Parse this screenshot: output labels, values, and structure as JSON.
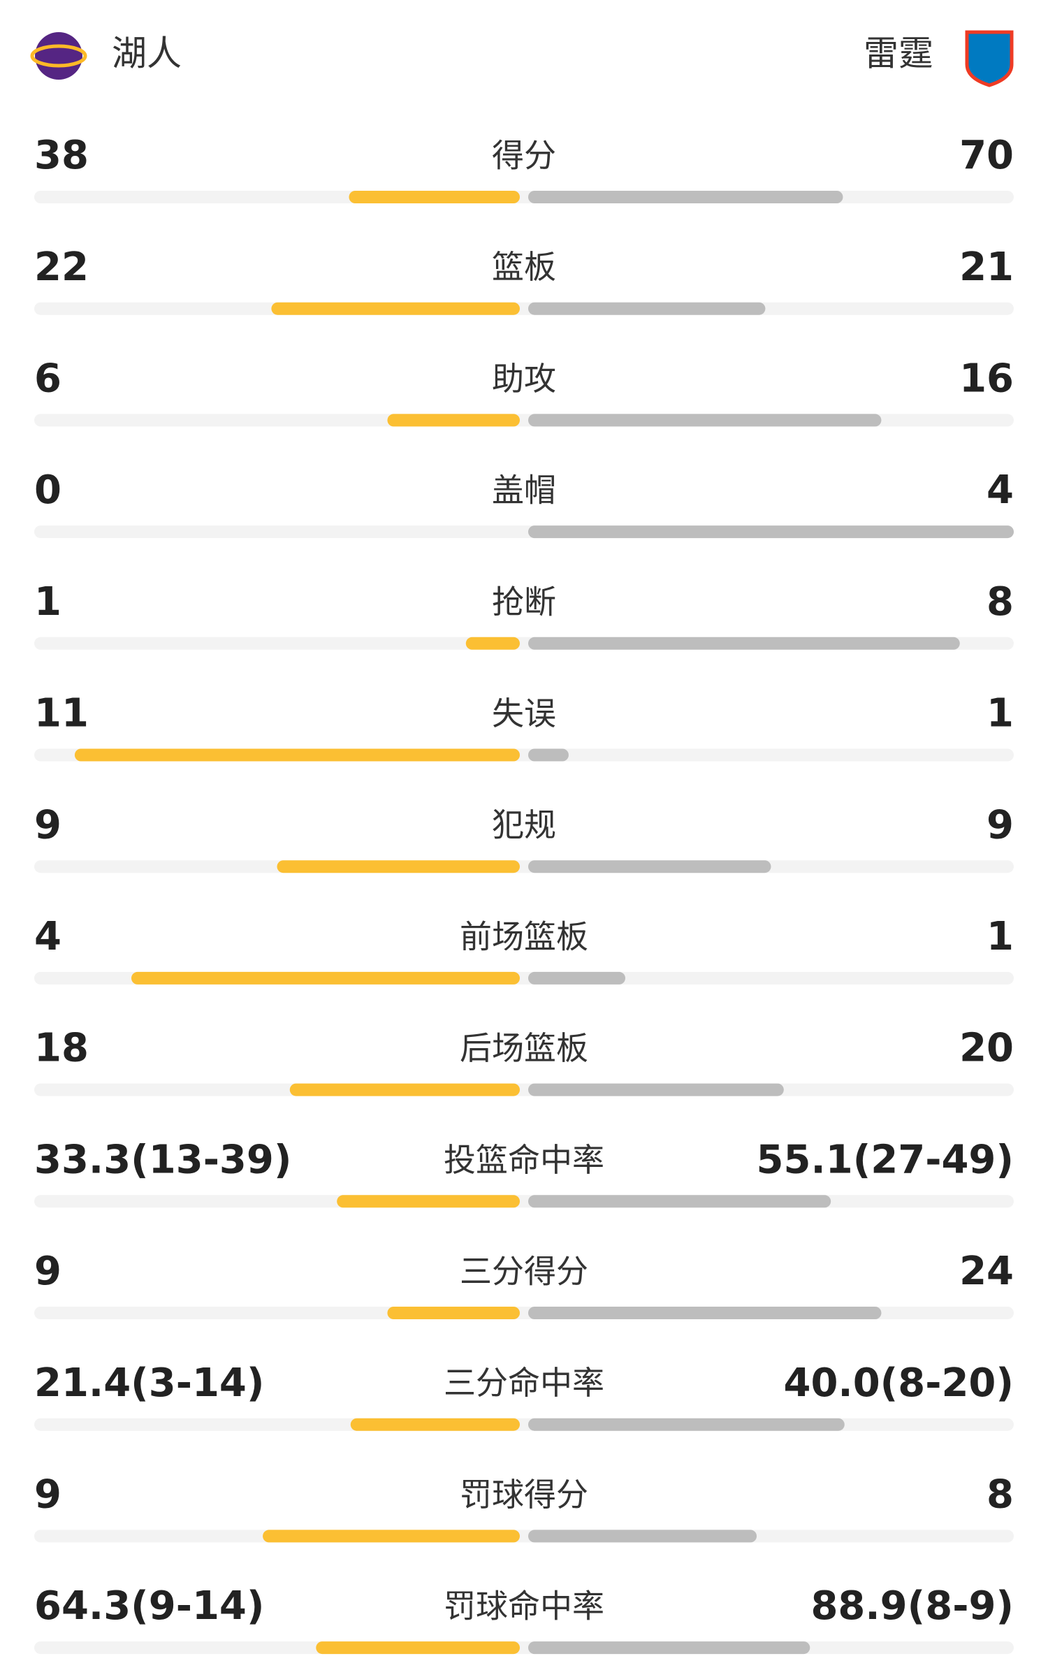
{
  "header": {
    "left_team": "湖人",
    "right_team": "雷霆"
  },
  "rows": [
    {
      "label": "得分",
      "left": 38,
      "right": 70
    },
    {
      "label": "篮板",
      "left": 22,
      "right": 21
    },
    {
      "label": "助攻",
      "left": 6,
      "right": 16
    },
    {
      "label": "盖帽",
      "left": 0,
      "right": 4
    },
    {
      "label": "抢断",
      "left": 1,
      "right": 8
    },
    {
      "label": "失误",
      "left": 11,
      "right": 1
    },
    {
      "label": "犯规",
      "left": 9,
      "right": 9
    },
    {
      "label": "前场篮板",
      "left": 4,
      "right": 1
    },
    {
      "label": "后场篮板",
      "left": 18,
      "right": 20
    },
    {
      "label": "投篮命中率",
      "left": {
        "value": 33.3,
        "label": "33.3(13-39)"
      },
      "right": {
        "value": 55.1,
        "label": "55.1(27-49)"
      }
    },
    {
      "label": "三分得分",
      "left": 9,
      "right": 24
    },
    {
      "label": "三分命中率",
      "left": {
        "value": 21.4,
        "label": "21.4(3-14)"
      },
      "right": {
        "value": 40.0,
        "label": "40.0(8-20)"
      }
    },
    {
      "label": "罚球得分",
      "left": 9,
      "right": 8
    },
    {
      "label": "罚球命中率",
      "left": {
        "value": 64.3,
        "label": "64.3(9-14)"
      },
      "right": {
        "value": 88.9,
        "label": "88.9(8-9)"
      }
    }
  ]
}
